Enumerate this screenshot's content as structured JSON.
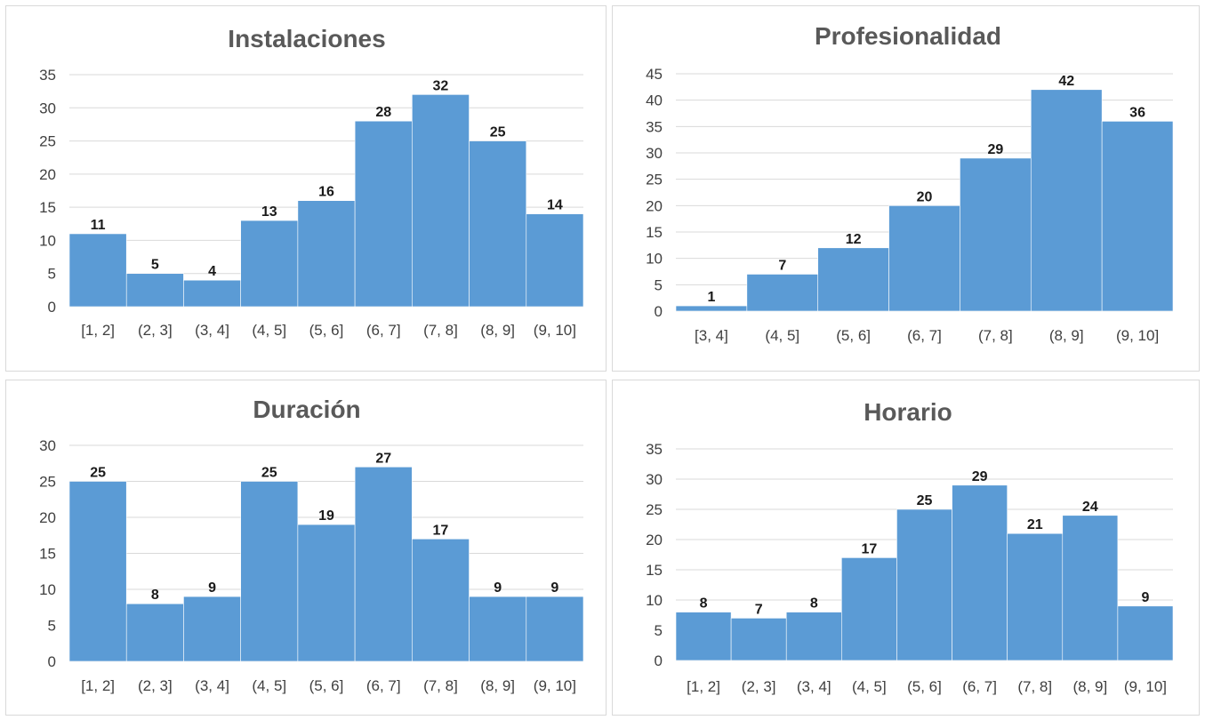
{
  "chart_data": [
    {
      "type": "bar",
      "title": "Instalaciones",
      "categories": [
        "[1, 2]",
        "(2, 3]",
        "(3, 4]",
        "(4, 5]",
        "(5, 6]",
        "(6, 7]",
        "(7, 8]",
        "(8, 9]",
        "(9, 10]"
      ],
      "values": [
        11,
        5,
        4,
        13,
        16,
        28,
        32,
        25,
        14
      ],
      "ylim": [
        0,
        35
      ],
      "yticks": [
        0,
        5,
        10,
        15,
        20,
        25,
        30,
        35
      ],
      "grid": true,
      "bar_color": "#5b9bd5"
    },
    {
      "type": "bar",
      "title": "Profesionalidad",
      "categories": [
        "[3, 4]",
        "(4, 5]",
        "(5, 6]",
        "(6, 7]",
        "(7, 8]",
        "(8, 9]",
        "(9, 10]"
      ],
      "values": [
        1,
        7,
        12,
        20,
        29,
        42,
        36
      ],
      "ylim": [
        0,
        45
      ],
      "yticks": [
        0,
        5,
        10,
        15,
        20,
        25,
        30,
        35,
        40,
        45
      ],
      "grid": true,
      "bar_color": "#5b9bd5"
    },
    {
      "type": "bar",
      "title": "Duración",
      "categories": [
        "[1, 2]",
        "(2, 3]",
        "(3, 4]",
        "(4, 5]",
        "(5, 6]",
        "(6, 7]",
        "(7, 8]",
        "(8, 9]",
        "(9, 10]"
      ],
      "values": [
        25,
        8,
        9,
        25,
        19,
        27,
        17,
        9,
        9
      ],
      "ylim": [
        0,
        30
      ],
      "yticks": [
        0,
        5,
        10,
        15,
        20,
        25,
        30
      ],
      "grid": true,
      "bar_color": "#5b9bd5"
    },
    {
      "type": "bar",
      "title": "Horario",
      "categories": [
        "[1, 2]",
        "(2, 3]",
        "(3, 4]",
        "(4, 5]",
        "(5, 6]",
        "(6, 7]",
        "(7, 8]",
        "(8, 9]",
        "(9, 10]"
      ],
      "values": [
        8,
        7,
        8,
        17,
        25,
        29,
        21,
        24,
        9
      ],
      "ylim": [
        0,
        35
      ],
      "yticks": [
        0,
        5,
        10,
        15,
        20,
        25,
        30,
        35
      ],
      "grid": true,
      "bar_color": "#5b9bd5"
    }
  ]
}
